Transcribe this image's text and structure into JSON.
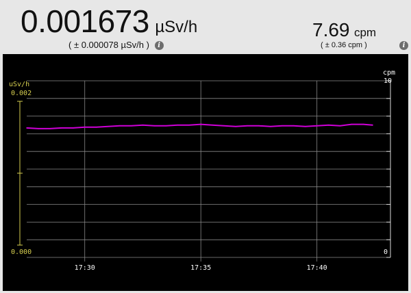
{
  "dose": {
    "value": "0.001673",
    "unit": "µSv/h",
    "error_open": "( ± 0.000078 µSv/h )",
    "info_icon": "info-icon"
  },
  "count": {
    "value": "7.69",
    "unit": "cpm",
    "error": "( ± 0.36 cpm )",
    "info_icon": "info-icon"
  },
  "colors": {
    "background": "#e7e7e7",
    "plot_bg": "#000000",
    "grid": "#8a8a8a",
    "left_axis": "#d8d050",
    "series": "#d000d8"
  },
  "chart_data": {
    "type": "line",
    "left_axis": {
      "label": "uSv/h",
      "top_tick": "0.002",
      "bottom_tick": "0.000",
      "ylim": [
        0.0,
        0.002
      ]
    },
    "right_axis": {
      "label": "cpm",
      "top_tick": "10",
      "bottom_tick": "0",
      "ylim": [
        0,
        10
      ]
    },
    "x_ticks": [
      "17:30",
      "17:35",
      "17:40"
    ],
    "x_tick_minutes": [
      30,
      35,
      40
    ],
    "x_range_minutes": [
      27.5,
      42.4
    ],
    "grid": true,
    "series": [
      {
        "x": [
          27.5,
          28.0,
          28.5,
          29.0,
          29.5,
          30.0,
          30.5,
          31.0,
          31.5,
          32.0,
          32.5,
          33.0,
          33.5,
          34.0,
          34.5,
          35.0,
          35.5,
          36.0,
          36.5,
          37.0,
          37.5,
          38.0,
          38.5,
          39.0,
          39.5,
          40.0,
          40.5,
          41.0,
          41.5,
          42.0,
          42.4
        ],
        "y": [
          0.00163,
          0.00162,
          0.00162,
          0.00163,
          0.00163,
          0.00164,
          0.00164,
          0.00165,
          0.00166,
          0.00166,
          0.00167,
          0.00166,
          0.00166,
          0.00167,
          0.00167,
          0.00168,
          0.00167,
          0.00166,
          0.00165,
          0.00166,
          0.00166,
          0.00165,
          0.00166,
          0.00166,
          0.00165,
          0.00166,
          0.00167,
          0.00166,
          0.00168,
          0.00168,
          0.00167
        ]
      }
    ]
  }
}
